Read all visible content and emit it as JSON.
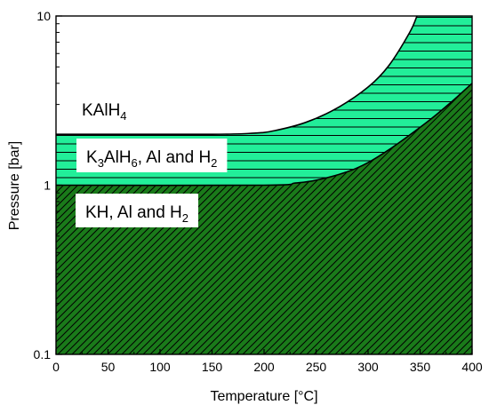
{
  "chart_data": {
    "type": "area",
    "title": "",
    "xlabel": "Temperature [°C]",
    "ylabel": "Pressure [bar]",
    "xlim": [
      0,
      400
    ],
    "ylim": [
      0.1,
      10
    ],
    "yscale": "log",
    "grid": false,
    "x_ticks": [
      0,
      50,
      100,
      150,
      200,
      250,
      300,
      350,
      400
    ],
    "y_ticks": [
      0.1,
      1,
      10
    ],
    "y_tick_labels": [
      "0.1",
      "1",
      "10"
    ],
    "boundaries": [
      {
        "between": [
          "KAlH4",
          "K3AlH6, Al and H2"
        ],
        "points": [
          [
            0,
            2.0
          ],
          [
            150,
            2.0
          ],
          [
            190,
            2.03
          ],
          [
            210,
            2.1
          ],
          [
            240,
            2.35
          ],
          [
            270,
            2.85
          ],
          [
            300,
            3.8
          ],
          [
            320,
            5.1
          ],
          [
            340,
            8.0
          ],
          [
            347,
            10.0
          ]
        ]
      },
      {
        "between": [
          "K3AlH6, Al and H2",
          "KH, Al and H2"
        ],
        "points": [
          [
            0,
            1.0
          ],
          [
            200,
            1.0
          ],
          [
            230,
            1.03
          ],
          [
            250,
            1.07
          ],
          [
            280,
            1.2
          ],
          [
            300,
            1.36
          ],
          [
            320,
            1.62
          ],
          [
            340,
            1.98
          ],
          [
            360,
            2.45
          ],
          [
            380,
            3.1
          ],
          [
            400,
            4.0
          ]
        ]
      }
    ],
    "regions": [
      {
        "name": "KAlH4",
        "label": {
          "main": "KAlH",
          "sub": "4"
        },
        "fill": "#ffffff",
        "hatch": "none"
      },
      {
        "name": "K3AlH6, Al and H2",
        "label": {
          "parts": [
            [
              "K",
              ""
            ],
            [
              "3",
              "sub"
            ],
            [
              "AlH",
              ""
            ],
            [
              "6",
              "sub"
            ],
            [
              ", Al and H",
              ""
            ],
            [
              "2",
              "sub"
            ]
          ]
        },
        "fill": "#22ee99",
        "hatch": "horizontal"
      },
      {
        "name": "KH, Al and H2",
        "label": {
          "parts": [
            [
              "KH, Al and H",
              ""
            ],
            [
              "2",
              "sub"
            ]
          ]
        },
        "fill": "#1a7a1a",
        "hatch": "diagonal"
      }
    ]
  }
}
